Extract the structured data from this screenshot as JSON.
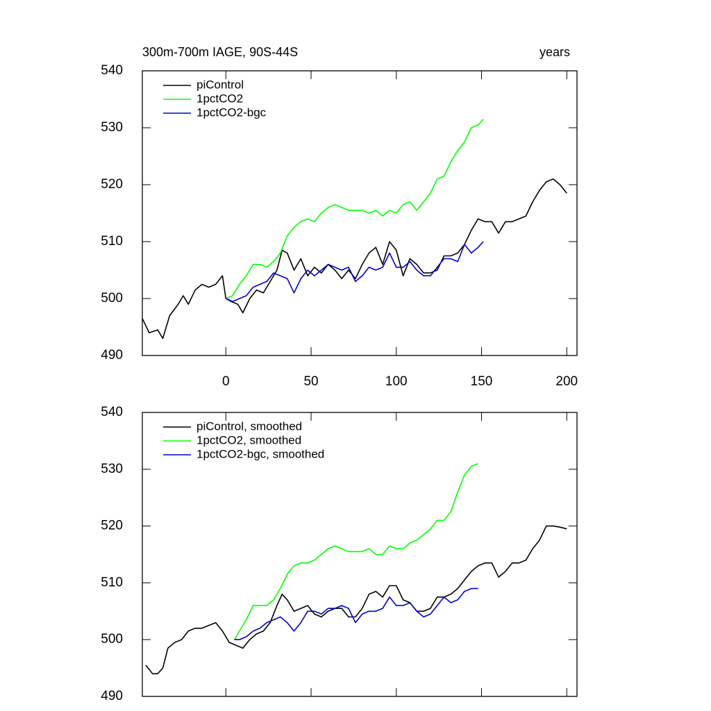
{
  "chart_data": [
    {
      "type": "line",
      "title": "300m-700m IAGE, 90S-44S",
      "title_right": "years",
      "xlim": [
        -49,
        206
      ],
      "ylim": [
        490,
        540
      ],
      "xticks": [
        0,
        50,
        100,
        150,
        200
      ],
      "yticks": [
        490,
        500,
        510,
        520,
        530,
        540
      ],
      "show_xtick_labels": true,
      "legend": "upper-left",
      "series": [
        {
          "name": "piControl",
          "color": "#000000",
          "x": [
            -49,
            -45,
            -40,
            -37,
            -33,
            -28,
            -25,
            -22,
            -18,
            -14,
            -10,
            -6,
            -2,
            0,
            3,
            7,
            10,
            14,
            18,
            22,
            26,
            30,
            33,
            36,
            40,
            44,
            48,
            52,
            56,
            60,
            64,
            68,
            72,
            76,
            80,
            84,
            88,
            92,
            96,
            100,
            104,
            108,
            112,
            116,
            120,
            124,
            128,
            132,
            136,
            140,
            144,
            148,
            152,
            156,
            160,
            164,
            168,
            172,
            176,
            180,
            184,
            188,
            192,
            196,
            200
          ],
          "values": [
            496.5,
            494,
            494.5,
            493,
            497,
            499,
            500.5,
            499,
            501.5,
            502.5,
            502,
            502.5,
            504,
            500,
            499.5,
            499,
            497.5,
            500,
            501.5,
            501,
            503,
            505,
            508.5,
            508,
            505,
            507,
            504,
            505.5,
            504.5,
            506,
            505,
            503.5,
            505,
            503.5,
            506,
            508,
            509,
            506,
            510,
            508.5,
            504,
            507,
            506,
            504.5,
            504.5,
            505,
            507.5,
            507.5,
            508,
            509.5,
            512,
            514,
            513.5,
            513.5,
            511.5,
            513.5,
            513.5,
            514,
            514.5,
            517,
            519,
            520.5,
            521,
            520,
            518.5
          ]
        },
        {
          "name": "1pctCO2",
          "color": "#00ff00",
          "x": [
            0,
            4,
            8,
            12,
            16,
            20,
            24,
            28,
            32,
            36,
            40,
            44,
            48,
            52,
            56,
            60,
            64,
            68,
            72,
            76,
            80,
            84,
            88,
            92,
            96,
            100,
            104,
            108,
            112,
            116,
            120,
            124,
            128,
            132,
            136,
            140,
            144,
            148,
            151
          ],
          "values": [
            500,
            500.5,
            502.5,
            504,
            506,
            506,
            505.5,
            506.5,
            508,
            511,
            512.5,
            513.5,
            514,
            513.5,
            515,
            516,
            516.5,
            516,
            515.5,
            515.5,
            515.5,
            515,
            515.5,
            514.5,
            515.5,
            515,
            516.5,
            517,
            515.5,
            517,
            518.5,
            521,
            521.5,
            524,
            526,
            527.5,
            530,
            530.5,
            531.5
          ]
        },
        {
          "name": "1pctCO2-bgc",
          "color": "#0000cc",
          "x": [
            0,
            4,
            8,
            12,
            16,
            20,
            24,
            28,
            32,
            36,
            40,
            44,
            48,
            52,
            56,
            60,
            64,
            68,
            72,
            76,
            80,
            84,
            88,
            92,
            96,
            100,
            104,
            108,
            112,
            116,
            120,
            124,
            128,
            132,
            136,
            140,
            144,
            148,
            151
          ],
          "values": [
            500,
            499.5,
            500,
            500.5,
            502,
            502.5,
            503,
            504.5,
            504,
            503.5,
            501,
            503.5,
            505,
            504,
            505,
            506,
            505.5,
            505,
            505.5,
            503,
            504,
            505.5,
            505,
            505.5,
            508,
            505.5,
            505.5,
            506.5,
            505,
            504,
            504,
            505.5,
            507,
            507,
            506.5,
            509.5,
            508,
            509,
            510
          ]
        }
      ]
    },
    {
      "type": "line",
      "xlim": [
        -49,
        206
      ],
      "ylim": [
        490,
        540
      ],
      "xticks": [
        0,
        50,
        100,
        150,
        200
      ],
      "yticks": [
        490,
        500,
        510,
        520,
        530,
        540
      ],
      "show_xtick_labels": false,
      "legend": "upper-left",
      "series": [
        {
          "name": "piControl, smoothed",
          "color": "#000000",
          "x": [
            -47,
            -43,
            -40,
            -37,
            -34,
            -30,
            -26,
            -22,
            -18,
            -14,
            -10,
            -6,
            -2,
            2,
            6,
            10,
            14,
            18,
            22,
            26,
            30,
            33,
            36,
            40,
            44,
            48,
            52,
            56,
            60,
            64,
            68,
            72,
            76,
            80,
            84,
            88,
            92,
            96,
            100,
            104,
            108,
            112,
            116,
            120,
            124,
            128,
            132,
            136,
            140,
            144,
            148,
            152,
            156,
            160,
            164,
            168,
            172,
            176,
            180,
            184,
            188,
            192,
            196,
            200
          ],
          "values": [
            495.5,
            494,
            494,
            495,
            498.5,
            499.5,
            500,
            501.5,
            502,
            502,
            502.5,
            503,
            501.5,
            499.5,
            499,
            498.5,
            500,
            501,
            501.5,
            503,
            506,
            508,
            507,
            505,
            505.5,
            506,
            504.5,
            504,
            505,
            505.5,
            505.5,
            504,
            504,
            505.5,
            508,
            508.5,
            507.5,
            509.5,
            509.5,
            507,
            506.5,
            505,
            505,
            505.5,
            507.5,
            507.5,
            508,
            509,
            510.5,
            512,
            513,
            513.5,
            513.5,
            511,
            512,
            513.5,
            513.5,
            514,
            516,
            517.5,
            520,
            520,
            519.8,
            519.5
          ]
        },
        {
          "name": "1pctCO2, smoothed",
          "color": "#00ff00",
          "x": [
            5,
            8,
            12,
            16,
            20,
            24,
            28,
            32,
            36,
            40,
            44,
            48,
            52,
            56,
            60,
            64,
            68,
            72,
            76,
            80,
            84,
            88,
            92,
            96,
            100,
            104,
            108,
            112,
            116,
            120,
            124,
            128,
            132,
            136,
            140,
            144,
            148
          ],
          "values": [
            500,
            501.5,
            503.5,
            506,
            506,
            506,
            507,
            509,
            511.5,
            513,
            513.5,
            513.5,
            514,
            515,
            516,
            516.5,
            516,
            515.5,
            515.5,
            515.5,
            516,
            515,
            515,
            516.5,
            516,
            516,
            517,
            517.5,
            518.5,
            519.5,
            521,
            521,
            522.5,
            526,
            529,
            530.5,
            531
          ]
        },
        {
          "name": "1pctCO2-bgc, smoothed",
          "color": "#0000cc",
          "x": [
            5,
            8,
            12,
            16,
            20,
            24,
            28,
            32,
            36,
            40,
            44,
            48,
            52,
            56,
            60,
            64,
            68,
            72,
            76,
            80,
            84,
            88,
            92,
            96,
            100,
            104,
            108,
            112,
            116,
            120,
            124,
            128,
            132,
            136,
            140,
            144,
            148
          ],
          "values": [
            500,
            500,
            500.5,
            501.5,
            502,
            503,
            503.5,
            504,
            503,
            501.5,
            503,
            505,
            505,
            504.5,
            505.5,
            505.5,
            506,
            505.5,
            503,
            504.5,
            505,
            505,
            505.5,
            507.5,
            506,
            506,
            506.5,
            505,
            504,
            504.5,
            506,
            507.5,
            506.5,
            507,
            508.5,
            509,
            509
          ]
        }
      ]
    }
  ]
}
